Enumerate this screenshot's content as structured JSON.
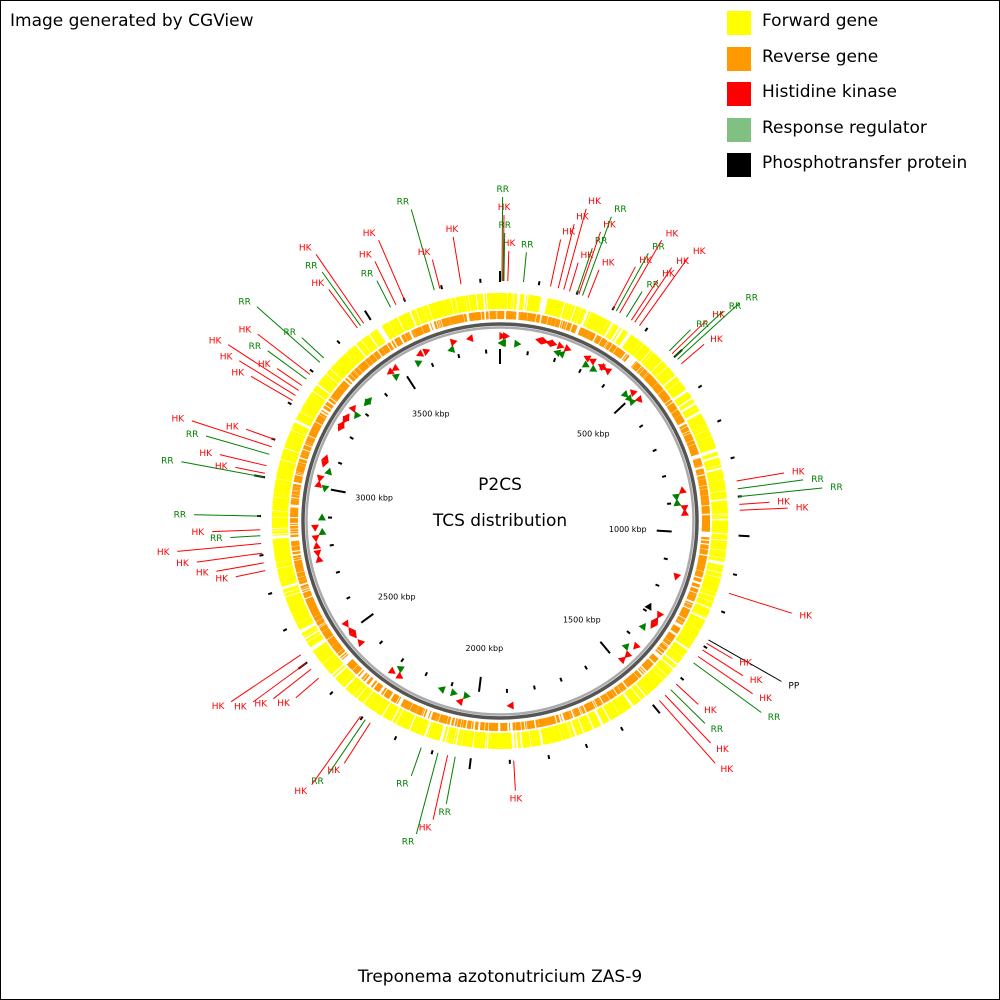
{
  "credit": "Image generated by CGView",
  "legend": [
    {
      "label": "Forward gene",
      "color": "#ffff00"
    },
    {
      "label": "Reverse gene",
      "color": "#ff9900"
    },
    {
      "label": "Histidine kinase",
      "color": "#ff0000"
    },
    {
      "label": "Response regulator",
      "color": "#80c080"
    },
    {
      "label": "Phosphotransfer protein",
      "color": "#000000"
    }
  ],
  "map": {
    "title": "P2CS",
    "subtitle": "TCS distribution",
    "organism": "Treponema azotonutricium ZAS-9",
    "genome_length_kbp": 3850,
    "tick_labels": [
      {
        "text": "500 kbp",
        "kbp": 500
      },
      {
        "text": "1000 kbp",
        "kbp": 1000
      },
      {
        "text": "1500 kbp",
        "kbp": 1500
      },
      {
        "text": "2000 kbp",
        "kbp": 2000
      },
      {
        "text": "2500 kbp",
        "kbp": 2500
      },
      {
        "text": "3000 kbp",
        "kbp": 3000
      },
      {
        "text": "3500 kbp",
        "kbp": 3500
      }
    ],
    "label_colors": {
      "HK": "#ff0000",
      "RR": "#008000",
      "PP": "#000000"
    },
    "features": [
      {
        "type": "HK",
        "kbp": 20
      },
      {
        "type": "RR",
        "kbp": 10
      },
      {
        "type": "HK",
        "kbp": 8
      },
      {
        "type": "RR",
        "kbp": 5
      },
      {
        "type": "RR",
        "kbp": 60
      },
      {
        "type": "HK",
        "kbp": 130
      },
      {
        "type": "HK",
        "kbp": 150
      },
      {
        "type": "HK",
        "kbp": 165
      },
      {
        "type": "HK",
        "kbp": 180
      },
      {
        "type": "RR",
        "kbp": 200
      },
      {
        "type": "HK",
        "kbp": 205
      },
      {
        "type": "RR",
        "kbp": 215
      },
      {
        "type": "HK",
        "kbp": 230
      },
      {
        "type": "HK",
        "kbp": 300
      },
      {
        "type": "RR",
        "kbp": 310
      },
      {
        "type": "HK",
        "kbp": 320
      },
      {
        "type": "RR",
        "kbp": 340
      },
      {
        "type": "HK",
        "kbp": 355
      },
      {
        "type": "HK",
        "kbp": 365
      },
      {
        "type": "HK",
        "kbp": 380
      },
      {
        "type": "RR",
        "kbp": 480
      },
      {
        "type": "HK",
        "kbp": 490
      },
      {
        "type": "RR",
        "kbp": 500
      },
      {
        "type": "RR",
        "kbp": 510
      },
      {
        "type": "HK",
        "kbp": 525
      },
      {
        "type": "HK",
        "kbp": 860
      },
      {
        "type": "RR",
        "kbp": 880
      },
      {
        "type": "RR",
        "kbp": 900
      },
      {
        "type": "HK",
        "kbp": 920
      },
      {
        "type": "HK",
        "kbp": 935
      },
      {
        "type": "HK",
        "kbp": 1150
      },
      {
        "type": "PP",
        "kbp": 1280
      },
      {
        "type": "HK",
        "kbp": 1290
      },
      {
        "type": "HK",
        "kbp": 1310
      },
      {
        "type": "HK",
        "kbp": 1330
      },
      {
        "type": "RR",
        "kbp": 1350
      },
      {
        "type": "HK",
        "kbp": 1420
      },
      {
        "type": "RR",
        "kbp": 1440
      },
      {
        "type": "HK",
        "kbp": 1460
      },
      {
        "type": "HK",
        "kbp": 1480
      },
      {
        "type": "HK",
        "kbp": 1890
      },
      {
        "type": "RR",
        "kbp": 2040
      },
      {
        "type": "HK",
        "kbp": 2060
      },
      {
        "type": "RR",
        "kbp": 2085
      },
      {
        "type": "RR",
        "kbp": 2130
      },
      {
        "type": "HK",
        "kbp": 2275
      },
      {
        "type": "RR",
        "kbp": 2290
      },
      {
        "type": "HK",
        "kbp": 2305
      },
      {
        "type": "HK",
        "kbp": 2450
      },
      {
        "type": "HK",
        "kbp": 2480
      },
      {
        "type": "HK",
        "kbp": 2500
      },
      {
        "type": "HK",
        "kbp": 2525
      },
      {
        "type": "HK",
        "kbp": 2760
      },
      {
        "type": "HK",
        "kbp": 2780
      },
      {
        "type": "HK",
        "kbp": 2805
      },
      {
        "type": "HK",
        "kbp": 2830
      },
      {
        "type": "RR",
        "kbp": 2850
      },
      {
        "type": "HK",
        "kbp": 2865
      },
      {
        "type": "RR",
        "kbp": 2900
      },
      {
        "type": "RR",
        "kbp": 3000
      },
      {
        "type": "HK",
        "kbp": 3010
      },
      {
        "type": "HK",
        "kbp": 3030
      },
      {
        "type": "RR",
        "kbp": 3060
      },
      {
        "type": "HK",
        "kbp": 3080
      },
      {
        "type": "HK",
        "kbp": 3100
      },
      {
        "type": "HK",
        "kbp": 3210
      },
      {
        "type": "HK",
        "kbp": 3225
      },
      {
        "type": "HK",
        "kbp": 3240
      },
      {
        "type": "HK",
        "kbp": 3255
      },
      {
        "type": "RR",
        "kbp": 3275
      },
      {
        "type": "HK",
        "kbp": 3290
      },
      {
        "type": "RR",
        "kbp": 3330
      },
      {
        "type": "RR",
        "kbp": 3345
      },
      {
        "type": "HK",
        "kbp": 3460
      },
      {
        "type": "RR",
        "kbp": 3470
      },
      {
        "type": "HK",
        "kbp": 3480
      },
      {
        "type": "RR",
        "kbp": 3560
      },
      {
        "type": "HK",
        "kbp": 3575
      },
      {
        "type": "HK",
        "kbp": 3600
      },
      {
        "type": "RR",
        "kbp": 3680
      },
      {
        "type": "HK",
        "kbp": 3695
      },
      {
        "type": "HK",
        "kbp": 3750
      }
    ]
  }
}
